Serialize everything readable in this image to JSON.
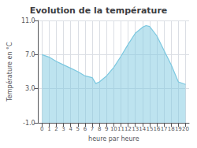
{
  "chart_data": {
    "type": "area",
    "title": "Evolution de la température",
    "xlabel": "heure par heure",
    "ylabel": "Température en °C",
    "x": [
      0,
      1,
      2,
      3,
      4,
      5,
      6,
      7,
      7.5,
      8,
      9,
      10,
      11,
      12,
      13,
      14,
      14.5,
      15,
      16,
      17,
      18,
      19,
      20
    ],
    "values": [
      7.0,
      6.7,
      6.2,
      5.8,
      5.4,
      5.0,
      4.5,
      4.3,
      3.6,
      3.8,
      4.5,
      5.5,
      6.8,
      8.2,
      9.5,
      10.2,
      10.4,
      10.3,
      9.2,
      7.5,
      5.8,
      3.8,
      3.5
    ],
    "color": "#7cc8e0",
    "xlim": [
      -0.5,
      20.5
    ],
    "xticks": [
      0,
      1,
      2,
      3,
      4,
      5,
      6,
      7,
      8,
      9,
      10,
      11,
      12,
      13,
      14,
      15,
      16,
      17,
      18,
      19,
      20
    ],
    "ylim": [
      -1.0,
      11.0
    ],
    "yticks": [
      {
        "value": -1.0,
        "label": "-1.0"
      },
      {
        "value": 3.0,
        "label": "3.0"
      },
      {
        "value": 7.0,
        "label": "7.0"
      },
      {
        "value": 11.0,
        "label": "11.0"
      }
    ],
    "grid": true
  }
}
